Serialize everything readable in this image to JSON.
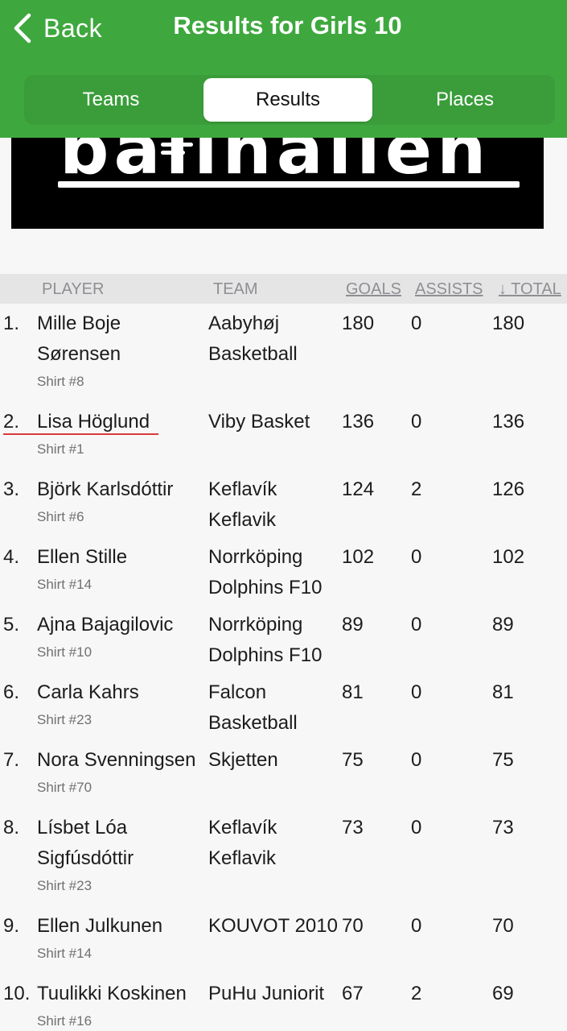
{
  "header": {
    "back_label": "Back",
    "title": "Results for Girls 10",
    "tabs": [
      "Teams",
      "Results",
      "Places"
    ],
    "active_tab": "Results"
  },
  "banner": {
    "logo_text": "ballhallen"
  },
  "table": {
    "columns": {
      "player": "PLAYER",
      "team": "TEAM",
      "goals": "GOALS",
      "assists": "ASSISTS",
      "total": "↓ TOTAL"
    },
    "rows": [
      {
        "rank": "1.",
        "player": "Mille Boje Sørensen",
        "shirt": "Shirt #8",
        "team": "Aabyhøj Basketball",
        "goals": "180",
        "assists": "0",
        "total": "180"
      },
      {
        "rank": "2.",
        "player": "Lisa Höglund",
        "shirt": "Shirt #1",
        "team": "Viby Basket",
        "goals": "136",
        "assists": "0",
        "total": "136"
      },
      {
        "rank": "3.",
        "player": "Björk Karlsdóttir",
        "shirt": "Shirt #6",
        "team": "Keflavík Keflavik",
        "goals": "124",
        "assists": "2",
        "total": "126"
      },
      {
        "rank": "4.",
        "player": "Ellen Stille",
        "shirt": "Shirt #14",
        "team": "Norrköping Dolphins F10",
        "goals": "102",
        "assists": "0",
        "total": "102"
      },
      {
        "rank": "5.",
        "player": "Ajna Bajagilovic",
        "shirt": "Shirt #10",
        "team": "Norrköping Dolphins F10",
        "goals": "89",
        "assists": "0",
        "total": "89"
      },
      {
        "rank": "6.",
        "player": "Carla Kahrs",
        "shirt": "Shirt #23",
        "team": "Falcon Basketball",
        "goals": "81",
        "assists": "0",
        "total": "81"
      },
      {
        "rank": "7.",
        "player": "Nora Svenningsen",
        "shirt": "Shirt #70",
        "team": "Skjetten",
        "goals": "75",
        "assists": "0",
        "total": "75"
      },
      {
        "rank": "8.",
        "player": "Lísbet Lóa Sigfúsdóttir",
        "shirt": "Shirt #23",
        "team": "Keflavík Keflavik",
        "goals": "73",
        "assists": "0",
        "total": "73"
      },
      {
        "rank": "9.",
        "player": "Ellen Julkunen",
        "shirt": "Shirt #14",
        "team": "KOUVOT 2010",
        "goals": "70",
        "assists": "0",
        "total": "70"
      },
      {
        "rank": "10.",
        "player": "Tuulikki Koskinen",
        "shirt": "Shirt #16",
        "team": "PuHu Juniorit",
        "goals": "67",
        "assists": "2",
        "total": "69"
      }
    ]
  },
  "colors": {
    "header_green": "#3ea83e",
    "highlight_underline": "#d93b3b"
  }
}
